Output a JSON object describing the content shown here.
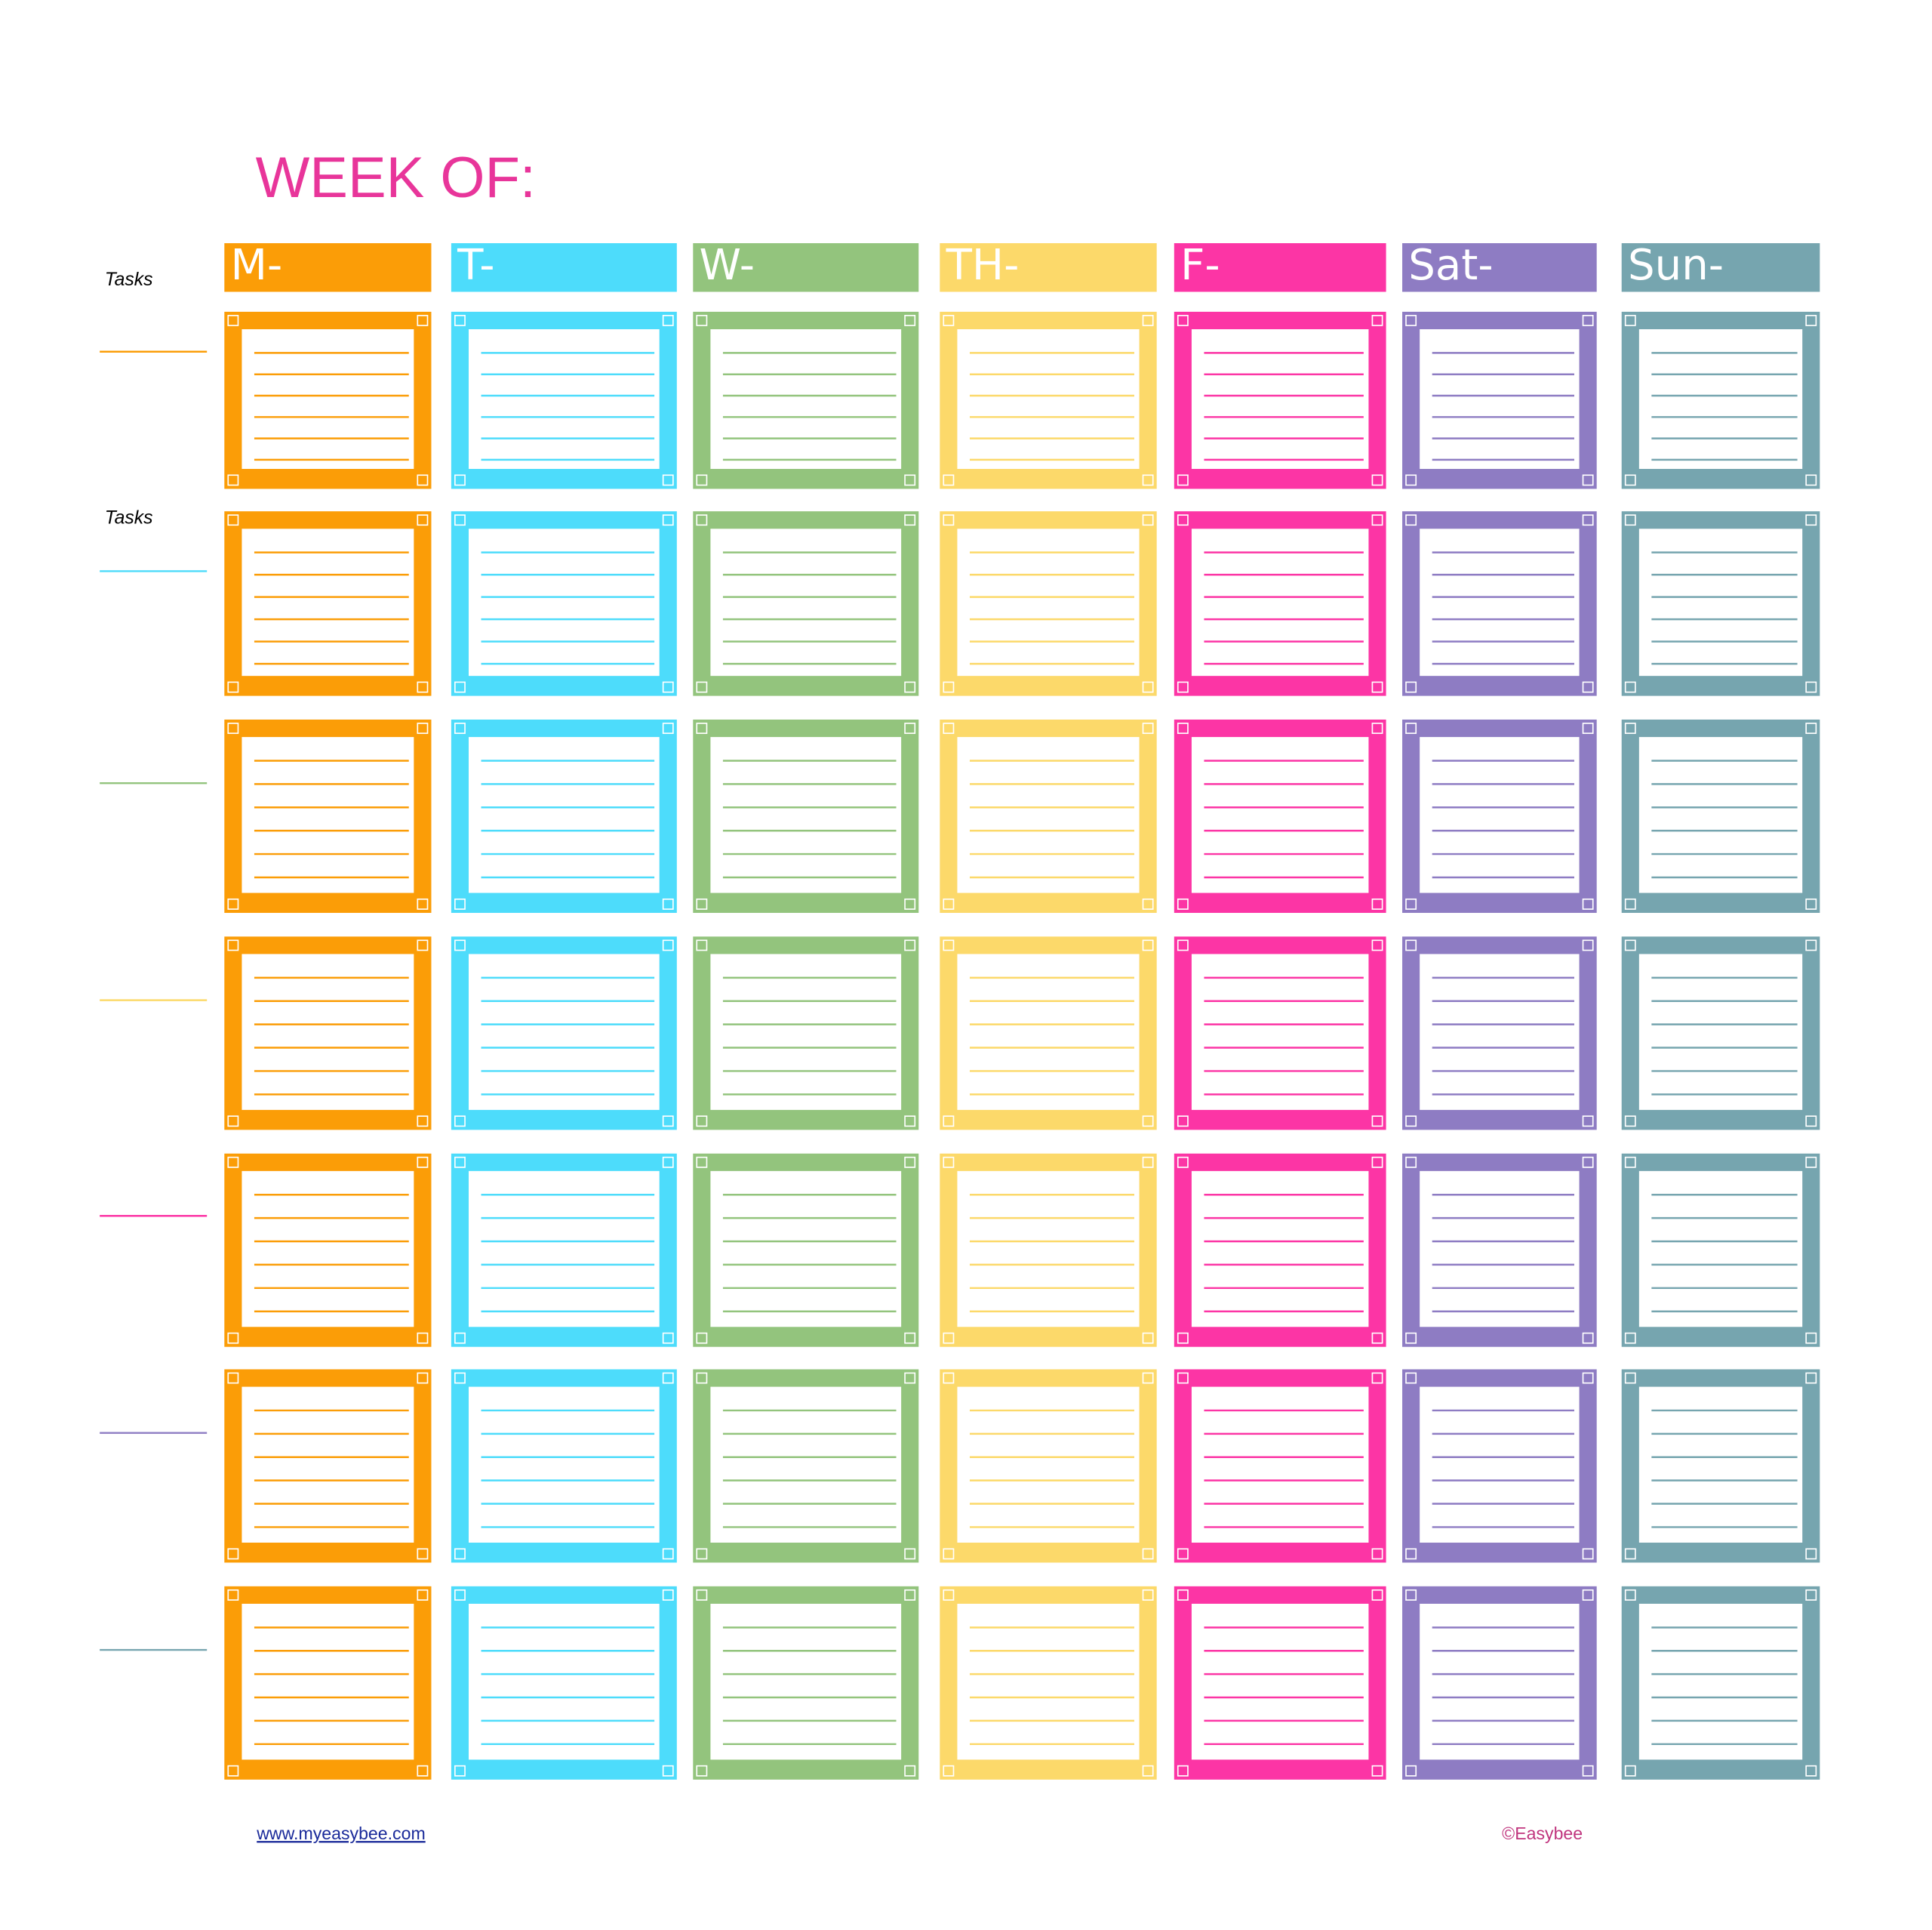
{
  "title": "WEEK OF:",
  "task_labels": [
    "Tasks",
    "Tasks"
  ],
  "days": [
    {
      "label": "M-",
      "color": "#fb9d07"
    },
    {
      "label": "T-",
      "color": "#4ddcfb"
    },
    {
      "label": "W-",
      "color": "#93c47d"
    },
    {
      "label": "TH-",
      "color": "#fcd96a"
    },
    {
      "label": "F-",
      "color": "#fc35a5"
    },
    {
      "label": "Sat-",
      "color": "#8e7cc3"
    },
    {
      "label": "Sun-",
      "color": "#76a5af"
    }
  ],
  "footer": {
    "link": "www.myeasybee.com",
    "copyright": "©Easybee"
  }
}
